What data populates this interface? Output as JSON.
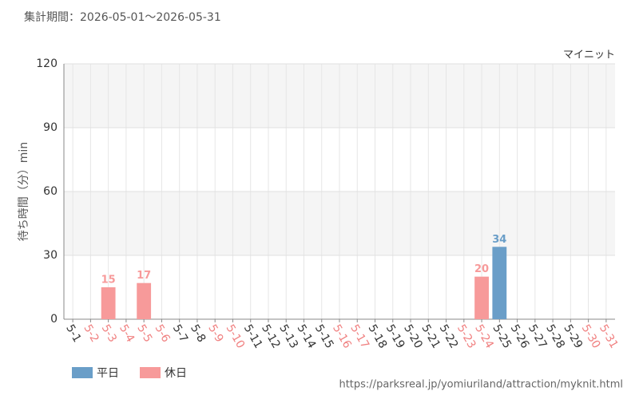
{
  "chart_data": {
    "type": "bar",
    "subtitle": "集計期間：2026-05-01～2026-05-31",
    "annotation": "マイニット",
    "y_label": "待ち時間（分）min",
    "source": "https://parksreal.jp/yomiuriland/attraction/myknit.html",
    "categories": [
      "5-1",
      "5-2",
      "5-3",
      "5-4",
      "5-5",
      "5-6",
      "5-7",
      "5-8",
      "5-9",
      "5-10",
      "5-11",
      "5-12",
      "5-13",
      "5-14",
      "5-15",
      "5-16",
      "5-17",
      "5-18",
      "5-19",
      "5-20",
      "5-21",
      "5-22",
      "5-23",
      "5-24",
      "5-25",
      "5-26",
      "5-27",
      "5-28",
      "5-29",
      "5-30",
      "5-31"
    ],
    "category_colors": [
      "#333333",
      "#f08080",
      "#f08080",
      "#f08080",
      "#f08080",
      "#f08080",
      "#333333",
      "#333333",
      "#f08080",
      "#f08080",
      "#333333",
      "#333333",
      "#333333",
      "#333333",
      "#333333",
      "#f08080",
      "#f08080",
      "#333333",
      "#333333",
      "#333333",
      "#333333",
      "#333333",
      "#f08080",
      "#f08080",
      "#333333",
      "#333333",
      "#333333",
      "#333333",
      "#333333",
      "#f08080",
      "#f08080"
    ],
    "series": [
      {
        "name": "平日",
        "color": "#6a9ec8",
        "values": [
          null,
          null,
          null,
          null,
          null,
          null,
          null,
          null,
          null,
          null,
          null,
          null,
          null,
          null,
          null,
          null,
          null,
          null,
          null,
          null,
          null,
          null,
          null,
          null,
          34,
          null,
          null,
          null,
          null,
          null,
          null
        ]
      },
      {
        "name": "休日",
        "color": "#f79a9a",
        "values": [
          null,
          null,
          15,
          null,
          17,
          null,
          null,
          null,
          null,
          null,
          null,
          null,
          null,
          null,
          null,
          null,
          null,
          null,
          null,
          null,
          null,
          null,
          null,
          20,
          null,
          null,
          null,
          null,
          null,
          null,
          null
        ]
      }
    ],
    "ylim": [
      0,
      120
    ],
    "yticks": [
      0,
      30,
      60,
      90,
      120
    ],
    "grid": true
  }
}
